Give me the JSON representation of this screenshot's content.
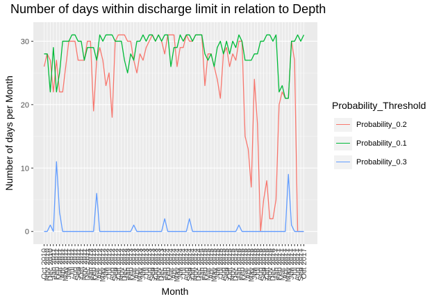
{
  "chart_data": {
    "type": "line",
    "title": "Number of days within discharge limit in relation to Depth",
    "xlabel": "Month",
    "ylabel": "Number of days per Month",
    "ylim": [
      -2,
      33
    ],
    "yticks": [
      0,
      10,
      20,
      30
    ],
    "x_range": [
      "Oct 2010",
      "Sep 2017"
    ],
    "x_tick_labels_legible": [
      "Oct 2010",
      "Sep 2017"
    ],
    "x_tick_note": "One tick per month Oct 2010 - Sep 2017; interior labels overlap and are illegible",
    "grid": true,
    "legend_title": "Probability_Threshold",
    "legend_position": "right",
    "series": [
      {
        "name": "Probability_0.2",
        "color": "#F8766D",
        "values": [
          26,
          28,
          27,
          22,
          27,
          22,
          22,
          26,
          30,
          30,
          30,
          27,
          27,
          27,
          30,
          30,
          19,
          27,
          29,
          27,
          23,
          25,
          18,
          30,
          31,
          31,
          31,
          30,
          30,
          27,
          25,
          28,
          27,
          29,
          30,
          31,
          30,
          31,
          30,
          28,
          31,
          31,
          31,
          26,
          29,
          29,
          31,
          30,
          30,
          31,
          31,
          31,
          23,
          28,
          28,
          26,
          24,
          21,
          28,
          29,
          26,
          28,
          27,
          30,
          30,
          15,
          13,
          7,
          24,
          17,
          0,
          5,
          8,
          2,
          2,
          5,
          20,
          22,
          21,
          21,
          30,
          27,
          0,
          0,
          0
        ]
      },
      {
        "name": "Probability_0.1",
        "color": "#00BA38",
        "values": [
          28,
          28,
          22,
          29,
          22,
          25,
          30,
          30,
          30,
          31,
          31,
          30,
          30,
          27,
          29,
          29,
          29,
          27,
          31,
          30,
          31,
          31,
          31,
          30,
          30,
          30,
          27,
          25,
          28,
          27,
          30,
          30,
          31,
          30,
          31,
          31,
          30,
          31,
          30,
          31,
          31,
          26,
          29,
          29,
          31,
          30,
          31,
          31,
          30,
          31,
          31,
          31,
          28,
          27,
          28,
          26,
          29,
          30,
          28,
          30,
          28,
          30,
          29,
          31,
          30,
          27,
          27,
          27,
          28,
          28,
          30,
          30,
          31,
          31,
          30,
          31,
          22,
          23,
          21,
          21,
          30,
          30,
          31,
          30,
          31
        ]
      },
      {
        "name": "Probability_0.3",
        "color": "#619CFF",
        "values": [
          0,
          0,
          1,
          0,
          11,
          3,
          0,
          0,
          0,
          0,
          0,
          0,
          0,
          0,
          0,
          0,
          0,
          6,
          0,
          0,
          0,
          0,
          0,
          0,
          0,
          0,
          0,
          0,
          0,
          1,
          0,
          0,
          0,
          0,
          0,
          0,
          0,
          0,
          0,
          2,
          0,
          0,
          0,
          0,
          0,
          0,
          0,
          2,
          0,
          0,
          0,
          0,
          0,
          0,
          0,
          0,
          0,
          0,
          0,
          0,
          0,
          0,
          0,
          1,
          0,
          0,
          0,
          0,
          0,
          0,
          0,
          0,
          0,
          0,
          0,
          0,
          0,
          0,
          0,
          9,
          1,
          0,
          0,
          0,
          0
        ]
      }
    ]
  }
}
